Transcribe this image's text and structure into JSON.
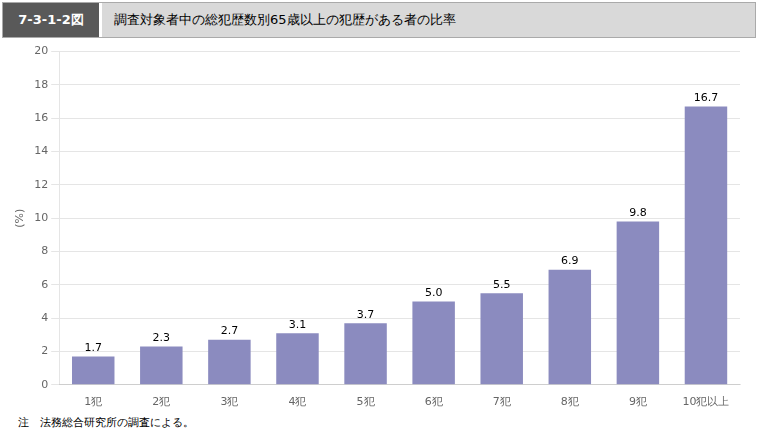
{
  "chart_data": {
    "type": "bar",
    "title": "調査対象者中の総犯歴数別65歳以上の犯歴がある者の比率",
    "subtitle": "7-3-1-2図",
    "y_label": "(%)",
    "annotations": [
      "注　法務総合研究所の調査による。"
    ],
    "categories": [
      "1犯",
      "2犯",
      "3犯",
      "4犯",
      "5犯",
      "6犯",
      "7犯",
      "8犯",
      "9犯",
      "10犯以上"
    ],
    "values": [
      1.7,
      2.3,
      2.7,
      3.1,
      3.7,
      5.0,
      5.5,
      6.9,
      9.8,
      16.7
    ],
    "value_labels": [
      "1.7",
      "2.3",
      "2.7",
      "3.1",
      "3.7",
      "5.0",
      "5.5",
      "6.9",
      "9.8",
      "16.7"
    ],
    "data_labels": true,
    "color": "#8b8bbf",
    "ylim": [
      0,
      20
    ],
    "yticks": [
      0,
      2,
      4,
      6,
      8,
      10,
      12,
      14,
      16,
      18,
      20
    ],
    "grid": true
  }
}
